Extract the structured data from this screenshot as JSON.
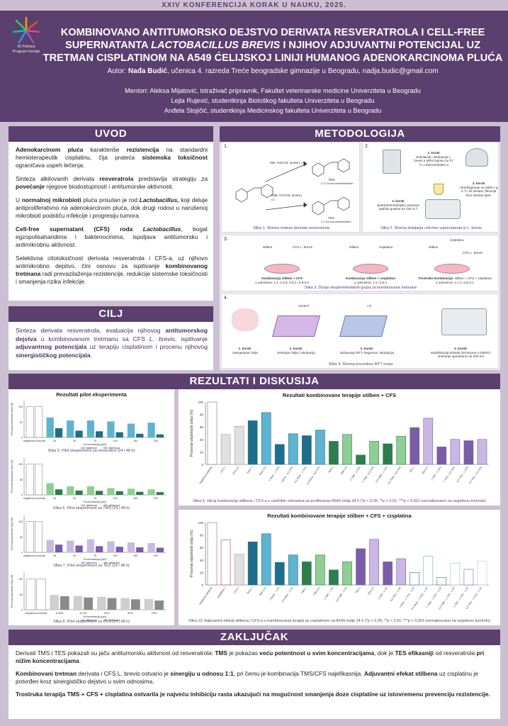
{
  "conference": "XXIV KONFERENCIJA KORAK U NAUKU, 2025.",
  "logo": {
    "line1": "IS Petnica",
    "line2": "Program hemije"
  },
  "title": {
    "part1": "KOMBINOVANO ANTITUMORSKO DEJSTVO DERIVATA RESVERATROLA I CELL-FREE SUPERNATANTA ",
    "italic": "LACTOBACILLUS BREVIS",
    "part2": " I NJIHOV ADJUVANTNI POTENCIJAL UZ TRETMAN CISPLATINOM NA A549 ĆELIJSKOJ LINIJI HUMANOG ADENOKARCINOMA PLUĆA"
  },
  "author": {
    "label": "Autor",
    "name": "Nađa Budić",
    "rest": ", učenica 4. razreda Treće beogradske gimnazije u Beogradu, nadja.budic@gmail.com"
  },
  "mentors": [
    "Mentori: Aleksa Mijatović, istraživač pripravnik, Fakultet veterinarske medicine Univerziteta u Beogradu",
    "Lejla Rujević, studentkinja Biološkog fakulteta Univerziteta u Beogradu",
    "Anđela Stojičić, studentkinja Medicinskog fakulteta Univerziteta u Beogradu"
  ],
  "sections": {
    "uvod": "UVOD",
    "metodologija": "METODOLOGIJA",
    "cilj": "CILJ",
    "rezultati": "REZULTATI I DISKUSIJA",
    "zakljucak": "ZAKLJUČAK"
  },
  "uvod": [
    {
      "b1": "Adenokarcinom pluća",
      "t1": " karakteriše ",
      "b2": "rezistencija",
      "t2": " na standardni hemioterapeutik cisplatinu, čija prateća ",
      "b3": "sistemska toksičnost",
      "t3": " ograničava uspeh lečenja."
    },
    {
      "b1": "",
      "t1": "Sinteza alkilovanih derivata ",
      "b2": "resveratrola",
      "t2": " predstavlja strategiju za ",
      "b3": "povećanje",
      "t3": " njegove biodostupnosti i antitumorske aktivnosti."
    },
    {
      "b1": "",
      "t1": "U ",
      "b2": "normalnoj mikrobioti",
      "t2": " pluća prisutan je rod ",
      "b3": "Lactobacillus,",
      "t3": " koji deluje antiproliferativno na adenokarcinom pluća, dok drugi rodovi u narušenoj mikrobioti podstiču infekcije i progresiju tumora."
    },
    {
      "b1": "Cell-free supernatant (CFS) roda ",
      "t1": "",
      "b2": "Lactobacillus",
      "t2": ", bogat egzopolisaharidima i bakteriocinima, ispoljava antitumorsku i antimikrobnu aktivnost.",
      "b3": "",
      "t3": ""
    },
    {
      "b1": "",
      "t1": "Selektivna citotoksičnost derivata resveratrola i CFS-a, uz njihovo antimikrobno dejstvo, čini osnovu za ispitivanje ",
      "b2": "kombinovanog tretmana",
      "t2": " radi prevazilaženja rezistencije, redukcije sistemske toksičnosti i smanjenja rizika infekcije.",
      "b3": "",
      "t3": ""
    }
  ],
  "cilj": {
    "t1": "Sinteza derivata resveratrola, evaluacija njihovog ",
    "b1": "antitumorskog dejstva",
    "t2": " u kombinovanom tretmanu sa CFS ",
    "i1": "L. brevis",
    "t3": ", ispitivanje ",
    "b2": "adjuvantnog potencijala",
    "t4": " uz terapiju cisplatinom i procenu njihovog ",
    "b3": "sinergističkog potencijala",
    "t5": "."
  },
  "metod": {
    "n1": "1.",
    "n2": "2.",
    "n3": "3.",
    "n4": "4.",
    "s1_cap": "Slika 1. Shema sinteze derivata resveratrola",
    "s1_r1": "MeI, K2CO3, aceton, r.t.",
    "s1_r2": "EtBr, K2CO3, aceton, r.t.",
    "s1_p1": "TMS",
    "s1_p1b": "3',4',5-trans-trimetoksistilben",
    "s1_p2": "TES",
    "s1_p2b": "3',4',5-trans-trietoksistilben",
    "s2_cap": "Slika 2. Shema dobijanja cell-free supernatanta iz L. brevis",
    "s2_k1h": "1. korak",
    "s2_k1": "inokulacija i inkubacija L. brevis u MRS bujonu na 37 °C u thermoshaker-u",
    "s2_k2h": "2. korak",
    "s2_k2": "spektrofotometrijsko praćenje optičke gustine do OD=0,7",
    "s2_k3h": "3. korak",
    "s2_k3": "centrifugiranje na 4000 x g 4 °C 15 minuta i filtracija kroz sterilan špric",
    "s3_cap": "Slika 3. Dizajn eksperimentalnih grupa za kombinovane tretmane",
    "s3_a": "stilben",
    "s3_b": "CFS L. brevis",
    "s3_c": "stilben",
    "s3_d": "cisplatina",
    "s3_e": "stilben",
    "s3_f": "CFS L. brevis",
    "s3_g": "cisplatina",
    "s3_k1": "Kombinacija stilben + CFS",
    "s3_k1r": "u odnosima: 1:1; 1:0,5; 0,5:1 i 0,5:0,5",
    "s3_k2": "Kombinacija stilben + cisplatina",
    "s3_k2r": "u odnosima: 1:1 i 0,5:1",
    "s3_k3": "Trostruka kombinacija",
    "s3_k3t": ": stilben + CFS + cisplatina",
    "s3_k3r": "u odnosima: 1:1:1 i 0,5:1:1",
    "s4_cap": "Slika 4. Shema procedure MTT eseja",
    "s4_24": "24/48 h",
    "s4_1h": "1 h",
    "s4_k1h": "1. korak:",
    "s4_k1": "zasejavanje ćelija",
    "s4_k2h": "2. korak:",
    "s4_k2": "tretiranje ćelija i inkubacija",
    "s4_k3h": "3. korak:",
    "s4_k3": "dodavanje MTT reagensa i inkubacija",
    "s4_k4h": "4. korak:",
    "s4_k4": "solubilizacija kristala formazana u DMSO i snimanje apsorbanci na 620 nm"
  },
  "rez": {
    "pilot_title": "Rezultati pilot eksperimenta",
    "s5": "Slika 5. Pilot eksperiment za resveratrol (24 i 48 h)",
    "s6": "Slika 6. Pilot eksperiment za TMS (24 i 48 h)",
    "s7": "Slika 7. Pilot eksperiment za TES (24 i 48 h)",
    "s8": "Slika 8. Pilot eksperiment za CFS (24 i 48 h)",
    "comb1_title": "Rezultati kombinovane terapije stilben + CFS",
    "comb2_title": "Rezultati kombinovane terapije stilben + CFS + cisplatina",
    "s9": "Slika 9. Uticaj kombinacija stilbena i CFS-a u različitim odnosima na proliferaciju A549 ćelija 24 h (*p < 0,05; **p < 0,01; ***p < 0,001 normalizovano na negativnu kontrolu)",
    "s10": "Slika 10. Adjuvantni efekat stilbena i CFS-a u kombinovanoj terapiji sa cisplatinom na A549 ćelije 24 h (*p < 0,05; **p < 0,01; ***p < 0,001 normalizovano na negativnu kontrolu)",
    "ylabel": "Procenat vijabilnosti ćelija (%)",
    "xlabel_conc": "Koncentracija (µM)",
    "leg24": "24h vijabilnost",
    "leg48": "48h vijabilnost"
  },
  "chart_data": [
    {
      "type": "bar",
      "title": "Slika 5. Pilot eksperiment za resveratrol (24 i 48 h)",
      "categories": [
        "negativna kontrola",
        "25",
        "50",
        "75",
        "100",
        "150",
        "200"
      ],
      "series": [
        {
          "name": "24h vijabilnost",
          "values": [
            100,
            65,
            55,
            55,
            52,
            45,
            48
          ]
        },
        {
          "name": "48h vijabilnost",
          "values": [
            100,
            30,
            22,
            20,
            17,
            12,
            10
          ]
        }
      ],
      "ylim": [
        0,
        120
      ],
      "xlabel": "Koncentracija (µM)",
      "ylabel": "Procenat vijabilnosti ćelija (%)"
    },
    {
      "type": "bar",
      "title": "Slika 6. Pilot eksperiment za TMS (24 i 48 h)",
      "categories": [
        "negativna kontrola",
        "25",
        "50",
        "75",
        "100",
        "150",
        "200"
      ],
      "series": [
        {
          "name": "24h vijabilnost",
          "values": [
            100,
            38,
            28,
            28,
            22,
            20,
            18
          ]
        },
        {
          "name": "48h vijabilnost",
          "values": [
            100,
            18,
            14,
            13,
            12,
            10,
            9
          ]
        }
      ],
      "ylim": [
        0,
        120
      ],
      "xlabel": "Koncentracija (µM)",
      "ylabel": "Procenat vijabilnosti ćelija (%)"
    },
    {
      "type": "bar",
      "title": "Slika 7. Pilot eksperiment za TES (24 i 48 h)",
      "categories": [
        "negativna kontrola",
        "25",
        "50",
        "75",
        "100",
        "150",
        "200"
      ],
      "series": [
        {
          "name": "24h vijabilnost",
          "values": [
            100,
            40,
            38,
            42,
            36,
            32,
            30
          ]
        },
        {
          "name": "48h vijabilnost",
          "values": [
            100,
            25,
            22,
            20,
            18,
            16,
            15
          ]
        }
      ],
      "ylim": [
        0,
        120
      ],
      "xlabel": "Koncentracija (µM)",
      "ylabel": "Procenat vijabilnosti ćelija (%)"
    },
    {
      "type": "bar",
      "title": "Slika 8. Pilot eksperiment za CFS (24 i 48 h)",
      "categories": [
        "negativna kontrola",
        "6,25%",
        "12,5%",
        "25%",
        "50%",
        "75%"
      ],
      "series": [
        {
          "name": "24h vijabilnost",
          "values": [
            100,
            48,
            45,
            42,
            38,
            35
          ]
        },
        {
          "name": "48h vijabilnost",
          "values": [
            100,
            44,
            40,
            38,
            34,
            30
          ]
        }
      ],
      "ylim": [
        0,
        120
      ],
      "xlabel": "Koncentracija (µM)",
      "ylabel": "Procenat vijabilnosti ćelija (%)"
    },
    {
      "type": "bar",
      "title": "Rezultati kombinovane terapije stilben + CFS",
      "categories": [
        "negativna kontrola",
        "CFS 1",
        "CFS 0.5",
        "Resv 1",
        "Resv 0.5",
        "1 Resv : 1 CFS",
        "1 Resv : 0.5 CFS",
        "0.5 Resv : 1 CFS",
        "0.5 Resv : 0.5 CFS",
        "TMS 1",
        "TMS 0.5",
        "1 TMS : 1 CFS",
        "1 TMS : 0.5 CFS",
        "0.5 TMS : 1 CFS",
        "0.5 TMS : 0.5 CFS",
        "TES 1",
        "TES 0.5",
        "1 TES : 1 CFS",
        "1 TES : 0.5 CFS",
        "0.5 TES : 1 CFS",
        "0.5 TES : 0.5 CFS"
      ],
      "values": [
        100,
        48,
        61,
        70,
        83,
        32,
        49,
        46,
        55,
        37,
        48,
        15,
        37,
        33,
        45,
        59,
        74,
        28,
        40,
        38,
        40
      ],
      "ylim": [
        0,
        100
      ],
      "ylabel": "Procenat vijabilnosti ćelija (%)"
    },
    {
      "type": "bar",
      "title": "Rezultati kombinovane terapije stilben + CFS + cisplatina",
      "categories": [
        "negativna kontrola",
        "cisplatina 1",
        "CFS 1",
        "Resv 1",
        "Resv 0.5",
        "1 Resv : 1 CP",
        "0.5 Resv : 1 CP",
        "TMS 1",
        "TMS 0.5",
        "1 TMS : 1 CP",
        "0.5 TMS : 1 CP",
        "TES 1",
        "TES 0.5",
        "1 TES : 1 CP",
        "0.5 TES : 1 CP",
        "1 Resv : 1 CFS : 1 CP",
        "0.5 Resv : 1 CFS : 1 CP",
        "1 TMS : 1 CFS : 1 CP",
        "0.5 TMS : 1 CFS : 1 CP",
        "1 TES : 1 CFS : 1 CP",
        "0.5 TES : 1 CFS : 1 CP"
      ],
      "values": [
        100,
        72,
        49,
        69,
        82,
        36,
        48,
        37,
        48,
        24,
        37,
        58,
        73,
        37,
        42,
        20,
        46,
        12,
        35,
        25,
        38
      ],
      "ylim": [
        0,
        100
      ],
      "ylabel": "Procenat vijabilnosti ćelija (%)"
    }
  ],
  "zakljucak": [
    {
      "t1": "Derivati TMS i TES pokazali su jaču antitumorsku aktivnost od resveratrola: ",
      "b1": "TMS",
      "t2": " je pokazao ",
      "b2": "veću potentnost u svim koncentracijama",
      "t3": ", dok je ",
      "b3": "TES efikasniji",
      "t4": " od resveratrola ",
      "b4": "pri nižim koncentracijama",
      "t5": "."
    },
    {
      "t1": "",
      "b1": "Kombinovani tretman",
      "t2": " derivata i CFS ",
      "b2": "",
      "t3": "L. brevis ostvario je ",
      "b3": "sinergiju u odnosu 1:1",
      "t4": ", pri čemu je kombinacija TMS/CFS najefikasnija. ",
      "b4": "Adjuvantni efekat stilbena",
      "t5": " uz cisplatinu je potvrđen kroz sinergističko dejstvo u svim odnosima."
    },
    {
      "t1": "",
      "b1": "Trostruka terapija TMS + CFS + cisplatina ostvarila je najveću inhibiciju rasta ukazujući na mogućnost smanjenja doze cisplatine uz istovremenu prevenciju rezistencije.",
      "t2": "",
      "b2": "",
      "t3": "",
      "b3": "",
      "t4": "",
      "b4": "",
      "t5": ""
    }
  ],
  "colors": {
    "purple": "#5b3f6e",
    "resv": "#1f6e8c",
    "resv_light": "#5fb3cf",
    "tms": "#2e7d4f",
    "tms_light": "#8fcf93",
    "tes": "#7b5ca8",
    "tes_light": "#c9b8e4",
    "ctrl": "#ffffff",
    "cfs": "#cfcfcf",
    "cp": "#c0392b"
  }
}
